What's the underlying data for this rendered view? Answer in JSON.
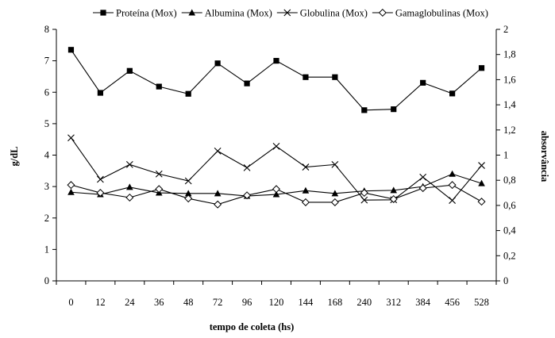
{
  "chart_data": {
    "type": "line",
    "title": "",
    "xlabel": "tempo de coleta (hs)",
    "ylabel": "g/dL",
    "y2label": "absorvância",
    "categories": [
      "0",
      "12",
      "24",
      "36",
      "48",
      "72",
      "96",
      "120",
      "144",
      "168",
      "240",
      "312",
      "384",
      "456",
      "528"
    ],
    "ylim": [
      0,
      8
    ],
    "yticks": [
      "0",
      "1",
      "2",
      "3",
      "4",
      "5",
      "6",
      "7",
      "8"
    ],
    "y2lim": [
      0,
      2
    ],
    "y2ticks": [
      "0",
      "0,2",
      "0,4",
      "0,6",
      "0,8",
      "1",
      "1,2",
      "1,4",
      "1,6",
      "1,8",
      "2"
    ],
    "grid": false,
    "legend_position": "top",
    "series": [
      {
        "name": "Proteína (Mox)",
        "marker": "square",
        "axis": "left",
        "values": [
          7.35,
          5.98,
          6.68,
          6.18,
          5.95,
          6.92,
          6.28,
          7.0,
          6.48,
          6.48,
          5.43,
          5.46,
          6.3,
          5.96,
          6.77
        ]
      },
      {
        "name": "Albumina (Mox)",
        "marker": "triangle",
        "axis": "left",
        "values": [
          2.82,
          2.75,
          2.98,
          2.8,
          2.78,
          2.78,
          2.7,
          2.75,
          2.87,
          2.78,
          2.86,
          2.88,
          3.0,
          3.4,
          3.1
        ]
      },
      {
        "name": "Globulina (Mox)",
        "marker": "x",
        "axis": "left",
        "values": [
          4.55,
          3.23,
          3.7,
          3.4,
          3.18,
          4.13,
          3.6,
          4.28,
          3.62,
          3.7,
          2.57,
          2.58,
          3.3,
          2.56,
          3.67
        ]
      },
      {
        "name": "Gamaglobulinas (Mox)",
        "marker": "diamond",
        "axis": "left",
        "values": [
          3.05,
          2.8,
          2.65,
          2.92,
          2.62,
          2.43,
          2.72,
          2.92,
          2.5,
          2.5,
          2.8,
          2.6,
          2.95,
          3.05,
          2.52
        ]
      }
    ]
  }
}
